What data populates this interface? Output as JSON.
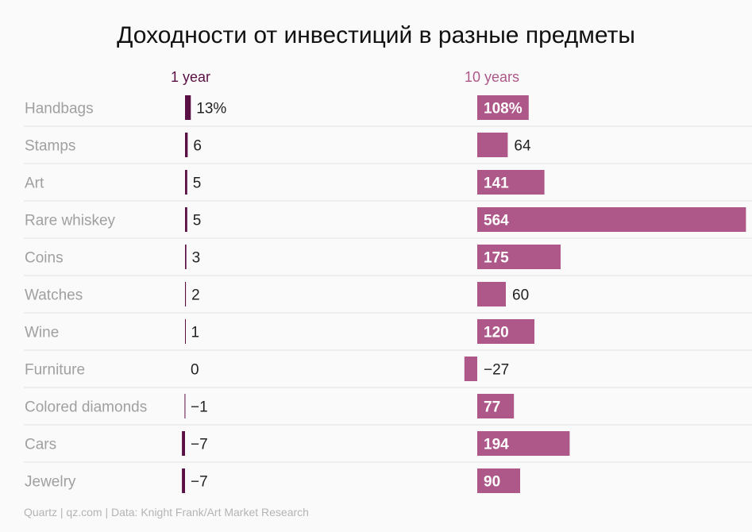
{
  "title": "Доходности от инвестиций в разные предметы",
  "colors": {
    "one_year": "#5a0f45",
    "ten_years": "#ad5889",
    "grid": "#e2e2e2",
    "row_label": "#a0a0a0"
  },
  "chart_data": {
    "type": "bar",
    "title": "Доходности от инвестиций в разные предметы",
    "categories": [
      "Handbags",
      "Stamps",
      "Art",
      "Rare whiskey",
      "Coins",
      "Watches",
      "Wine",
      "Furniture",
      "Colored diamonds",
      "Cars",
      "Jewelry"
    ],
    "series": [
      {
        "name": "1 year",
        "values": [
          13,
          6,
          5,
          5,
          3,
          2,
          1,
          0,
          -1,
          -7,
          -7
        ],
        "labels": [
          "13%",
          "6",
          "5",
          "5",
          "3",
          "2",
          "1",
          "0",
          "−1",
          "−7",
          "−7"
        ]
      },
      {
        "name": "10 years",
        "values": [
          108,
          64,
          141,
          564,
          175,
          60,
          120,
          -27,
          77,
          194,
          90
        ],
        "labels": [
          "108%",
          "64",
          "141",
          "564",
          "175",
          "60",
          "120",
          "−27",
          "77",
          "194",
          "90"
        ]
      }
    ],
    "xlabel": "",
    "ylabel": ""
  },
  "footer": "Quartz | qz.com | Data: Knight Frank/Art Market Research"
}
